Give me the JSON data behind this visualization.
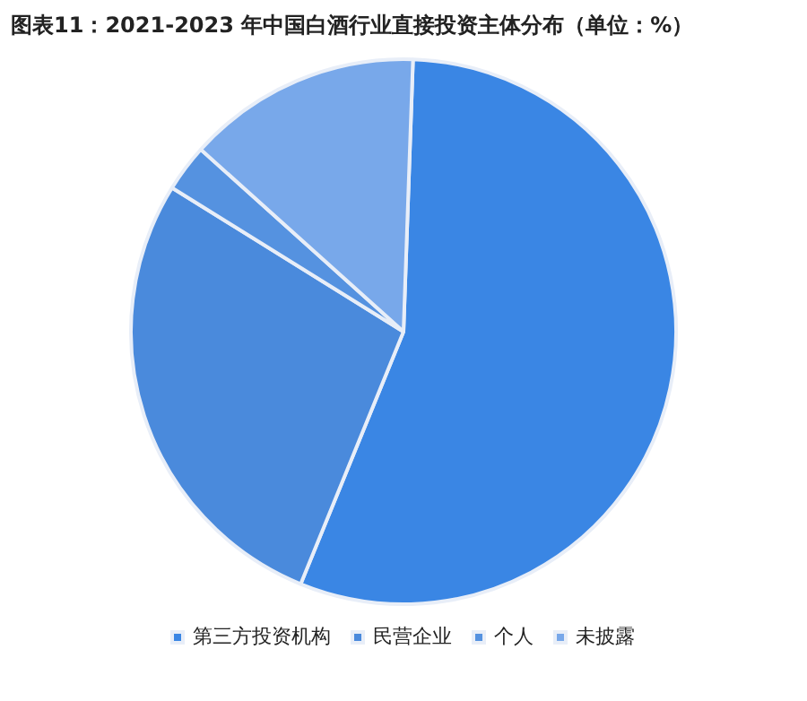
{
  "chart_data": {
    "type": "pie",
    "title": "图表11：2021-2023 年中国白酒行业直接投资主体分布（单位：%）",
    "categories": [
      "第三方投资机构",
      "民营企业",
      "个人",
      "未披露"
    ],
    "values": [
      55.6,
      27.7,
      2.8,
      13.9
    ],
    "colors": [
      "#3a86e4",
      "#4a8adc",
      "#5592e0",
      "#78a8ea"
    ],
    "legend": "bottom"
  }
}
